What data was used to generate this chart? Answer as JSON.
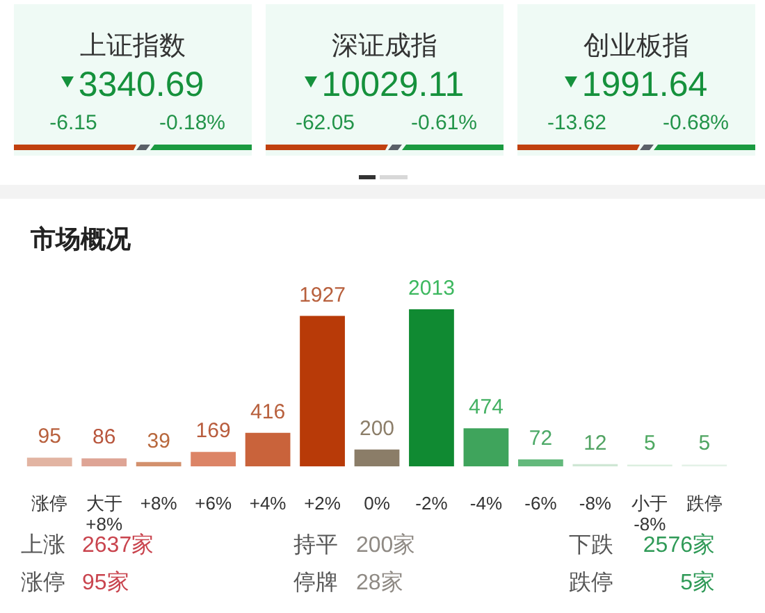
{
  "chart_data": [
    {
      "type": "other",
      "title": "上证指数",
      "annotations": [
        "3340.69",
        "-6.15",
        "-0.18%"
      ]
    },
    {
      "type": "other",
      "title": "深证成指",
      "annotations": [
        "10029.11",
        "-62.05",
        "-0.61%"
      ]
    },
    {
      "type": "other",
      "title": "创业板指",
      "annotations": [
        "1991.64",
        "-13.62",
        "-0.68%"
      ]
    },
    {
      "type": "bar",
      "title": "市场概况",
      "categories": [
        "涨停",
        "大于+8%",
        "+8%",
        "+6%",
        "+4%",
        "+2%",
        "0%",
        "-2%",
        "-4%",
        "-6%",
        "-8%",
        "小于-8%",
        "跌停"
      ],
      "values": [
        95,
        86,
        39,
        169,
        416,
        1927,
        200,
        2013,
        474,
        72,
        12,
        5,
        5
      ],
      "colors": [
        "#e2b4a2",
        "#dea495",
        "#d3916e",
        "#dc8466",
        "#c9633b",
        "#b83a08",
        "#8b7d68",
        "#108a32",
        "#3fa45c",
        "#63b97c",
        "#cfe7d4",
        "#dcefe0",
        "#e4f2e7"
      ],
      "data_labels": true,
      "tick_labels": "x",
      "annotations": [
        "上涨",
        "2637家",
        "持平",
        "200家",
        "下跌",
        "2576家",
        "涨停",
        "95家",
        "停牌",
        "28家",
        "跌停",
        "5家"
      ]
    }
  ]
}
